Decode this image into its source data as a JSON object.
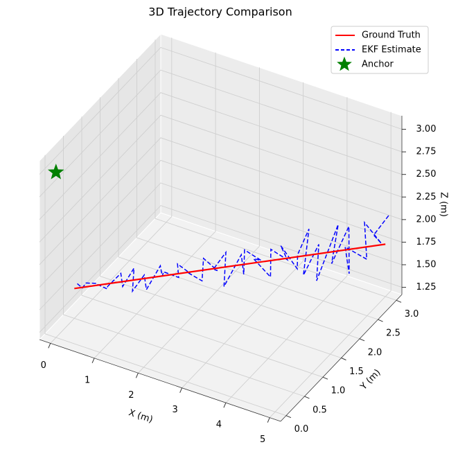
{
  "chart_data": {
    "type": "line3d",
    "title": "3D Trajectory Comparison",
    "xlabel": "X (m)",
    "ylabel": "Y (m)",
    "zlabel": "Z (m)",
    "xlim": [
      -0.25,
      5.25
    ],
    "ylim": [
      -0.15,
      3.15
    ],
    "zlim": [
      1.17,
      3.15
    ],
    "xticks": [
      0,
      1,
      2,
      3,
      4,
      5
    ],
    "yticks": [
      {
        "value": 0,
        "label": "0.0"
      },
      0.5,
      {
        "value": 1,
        "label": "1.0"
      },
      1.5,
      {
        "value": 2,
        "label": "2.0"
      },
      2.5,
      {
        "value": 3,
        "label": "3.0"
      }
    ],
    "zticks": [
      1.25,
      {
        "value": 1.5,
        "label": "1.50"
      },
      1.75,
      {
        "value": 2,
        "label": "2.00"
      },
      2.25,
      {
        "value": 2.5,
        "label": "2.50"
      },
      2.75,
      {
        "value": 3,
        "label": "3.00"
      }
    ],
    "grid": true,
    "legend": "upper right",
    "series": [
      {
        "name": "Ground Truth",
        "color": "red",
        "linestyle": "solid",
        "x": [
          0,
          5
        ],
        "y": [
          0.5,
          3.0
        ],
        "z": [
          1.5,
          1.75
        ]
      },
      {
        "name": "EKF Estimate",
        "color": "blue",
        "linestyle": "dashed",
        "x": [
          0,
          0.1,
          0.2,
          0.3,
          0.4,
          0.5,
          0.6,
          0.7,
          0.8,
          0.9,
          1.0,
          1.1,
          1.2,
          1.3,
          1.4,
          1.5,
          1.6,
          1.7,
          1.8,
          1.9,
          2.0,
          2.1,
          2.2,
          2.3,
          2.4,
          2.5,
          2.6,
          2.7,
          2.8,
          2.9,
          3.0,
          3.1,
          3.2,
          3.3,
          3.4,
          3.5,
          3.6,
          3.7,
          3.8,
          3.9,
          4.0,
          4.1,
          4.2,
          4.3,
          4.4,
          4.5,
          4.6,
          4.7,
          4.8,
          4.9,
          5.0
        ],
        "y": [
          0.58,
          0.6,
          0.58,
          0.75,
          0.63,
          0.8,
          0.69,
          0.93,
          0.86,
          1.05,
          0.89,
          1.09,
          1.03,
          1.29,
          1.22,
          1.14,
          1.43,
          1.28,
          1.5,
          1.29,
          1.59,
          1.51,
          1.77,
          1.54,
          1.76,
          1.59,
          1.94,
          1.89,
          1.79,
          2.12,
          1.8,
          2.14,
          2.03,
          2.36,
          2.06,
          2.39,
          2.28,
          2.47,
          2.2,
          2.5,
          2.32,
          2.79,
          2.49,
          2.84,
          2.73,
          2.5,
          2.97,
          2.79,
          3.13,
          2.8,
          3.09
        ],
        "z": [
          1.52,
          1.48,
          1.56,
          1.5,
          1.56,
          1.45,
          1.54,
          1.6,
          1.5,
          1.64,
          1.47,
          1.58,
          1.46,
          1.63,
          1.56,
          1.66,
          1.49,
          1.72,
          1.54,
          1.66,
          1.45,
          1.75,
          1.52,
          1.65,
          1.76,
          1.47,
          1.69,
          1.51,
          1.84,
          1.6,
          1.77,
          1.44,
          1.81,
          1.57,
          1.87,
          1.49,
          1.71,
          1.93,
          1.55,
          1.78,
          1.47,
          1.91,
          1.62,
          1.9,
          1.44,
          1.85,
          1.53,
          2.03,
          1.67,
          1.92,
          2.03
        ]
      },
      {
        "name": "Anchor",
        "color": "green",
        "linestyle": "none",
        "marker": "star",
        "x": [
          0
        ],
        "y": [
          0
        ],
        "z": [
          3.0
        ]
      }
    ]
  }
}
